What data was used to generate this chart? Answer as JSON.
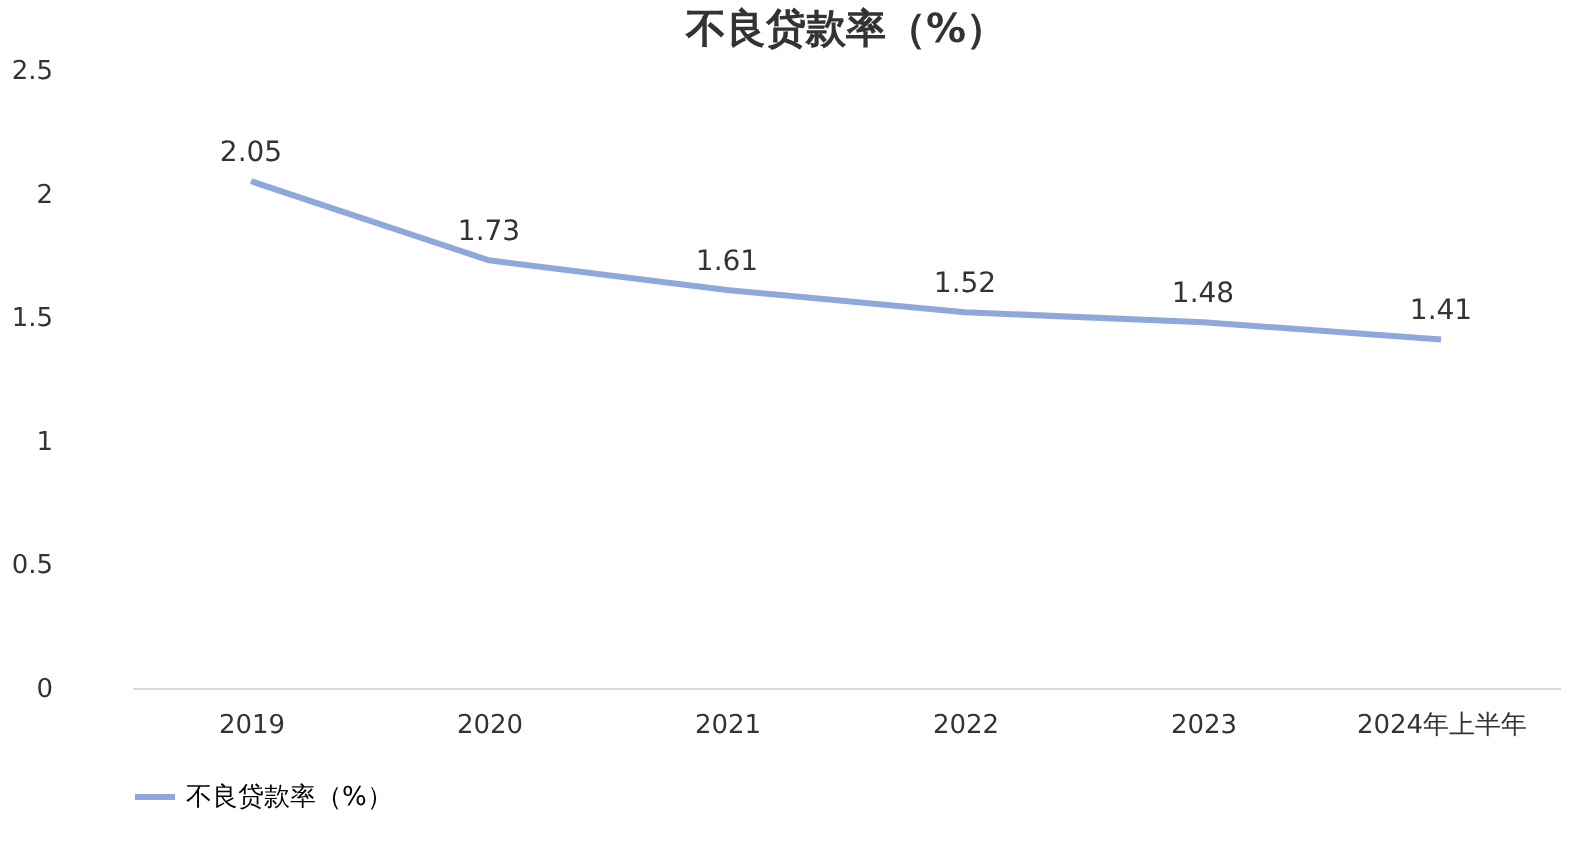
{
  "chart_data": {
    "type": "line",
    "title": "不良贷款率（%）",
    "categories": [
      "2019",
      "2020",
      "2021",
      "2022",
      "2023",
      "2024年上半年"
    ],
    "series": [
      {
        "name": "不良贷款率（%）",
        "color": "#8fa8dc",
        "values": [
          2.05,
          1.73,
          1.61,
          1.52,
          1.48,
          1.41
        ]
      }
    ],
    "ylim": [
      0,
      2.5
    ],
    "yticks": [
      0,
      0.5,
      1,
      1.5,
      2,
      2.5
    ],
    "grid": false,
    "legend": "bottom",
    "data_labels": true,
    "marker": "none",
    "line_style": "solid"
  }
}
